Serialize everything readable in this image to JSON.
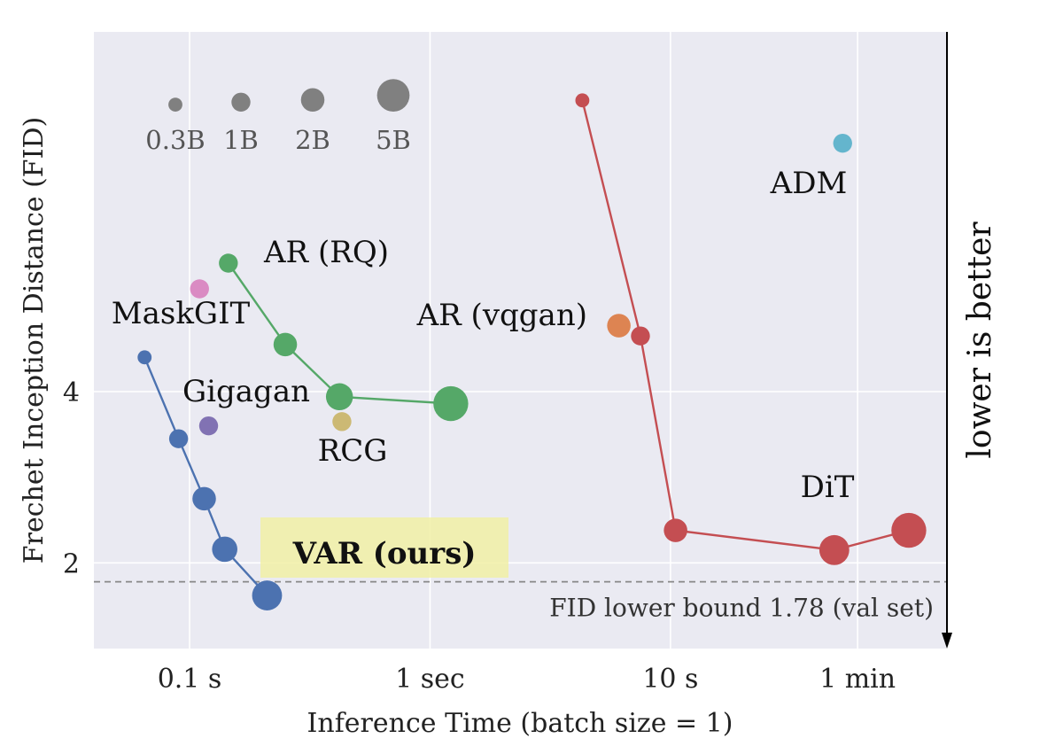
{
  "chart_data": {
    "type": "scatter",
    "xscale": "log",
    "xlabel": "Inference Time (batch size = 1)",
    "ylabel": "Frechet Inception Distance (FID)",
    "x_ticks": [
      {
        "value": 0.1,
        "label": "0.1 s"
      },
      {
        "value": 1,
        "label": "1 sec"
      },
      {
        "value": 10,
        "label": "10 s"
      },
      {
        "value": 60,
        "label": "1 min"
      }
    ],
    "y_ticks": [
      {
        "value": 2,
        "label": "2"
      },
      {
        "value": 4,
        "label": "4"
      }
    ],
    "xlim": [
      0.04,
      140
    ],
    "ylim": [
      1.0,
      8.2
    ],
    "grid": true,
    "bound": {
      "value": 1.78,
      "label": "FID lower bound 1.78 (val set)"
    },
    "arrow_label": "lower is better",
    "size_legend": [
      {
        "label": "0.3B",
        "size_b": 0.3
      },
      {
        "label": "1B",
        "size_b": 1
      },
      {
        "label": "2B",
        "size_b": 2
      },
      {
        "label": "5B",
        "size_b": 5
      }
    ],
    "series": [
      {
        "name": "VAR (ours)",
        "color": "#4c72b0",
        "highlight_label": true,
        "points": [
          {
            "x": 0.065,
            "y": 4.4,
            "size_b": 0.3
          },
          {
            "x": 0.09,
            "y": 3.45,
            "size_b": 1
          },
          {
            "x": 0.115,
            "y": 2.75,
            "size_b": 2
          },
          {
            "x": 0.14,
            "y": 2.16,
            "size_b": 2.5
          },
          {
            "x": 0.21,
            "y": 1.62,
            "size_b": 4
          }
        ]
      },
      {
        "name": "AR (RQ)",
        "color": "#55a868",
        "points": [
          {
            "x": 0.145,
            "y": 5.5,
            "size_b": 1
          },
          {
            "x": 0.25,
            "y": 4.55,
            "size_b": 2
          },
          {
            "x": 0.42,
            "y": 3.94,
            "size_b": 3
          },
          {
            "x": 1.22,
            "y": 3.86,
            "size_b": 6
          }
        ]
      },
      {
        "name": "DiT",
        "color": "#c44e52",
        "points": [
          {
            "x": 4.3,
            "y": 7.4,
            "size_b": 0.3
          },
          {
            "x": 7.5,
            "y": 4.65,
            "size_b": 1
          },
          {
            "x": 10.5,
            "y": 2.38,
            "size_b": 2
          },
          {
            "x": 48,
            "y": 2.15,
            "size_b": 4
          },
          {
            "x": 98,
            "y": 2.38,
            "size_b": 6
          }
        ]
      },
      {
        "name": "ADM",
        "color": "#64b5cd",
        "points": [
          {
            "x": 52,
            "y": 6.9,
            "size_b": 1
          }
        ]
      },
      {
        "name": "AR (vqgan)",
        "color": "#dd8452",
        "points": [
          {
            "x": 6.1,
            "y": 4.77,
            "size_b": 2
          }
        ]
      },
      {
        "name": "MaskGIT",
        "color": "#da8bc3",
        "points": [
          {
            "x": 0.11,
            "y": 5.2,
            "size_b": 1
          }
        ]
      },
      {
        "name": "Gigagan",
        "color": "#8172b3",
        "points": [
          {
            "x": 0.12,
            "y": 3.6,
            "size_b": 1
          }
        ]
      },
      {
        "name": "RCG",
        "color": "#ccb974",
        "points": [
          {
            "x": 0.43,
            "y": 3.65,
            "size_b": 1
          }
        ]
      }
    ]
  }
}
